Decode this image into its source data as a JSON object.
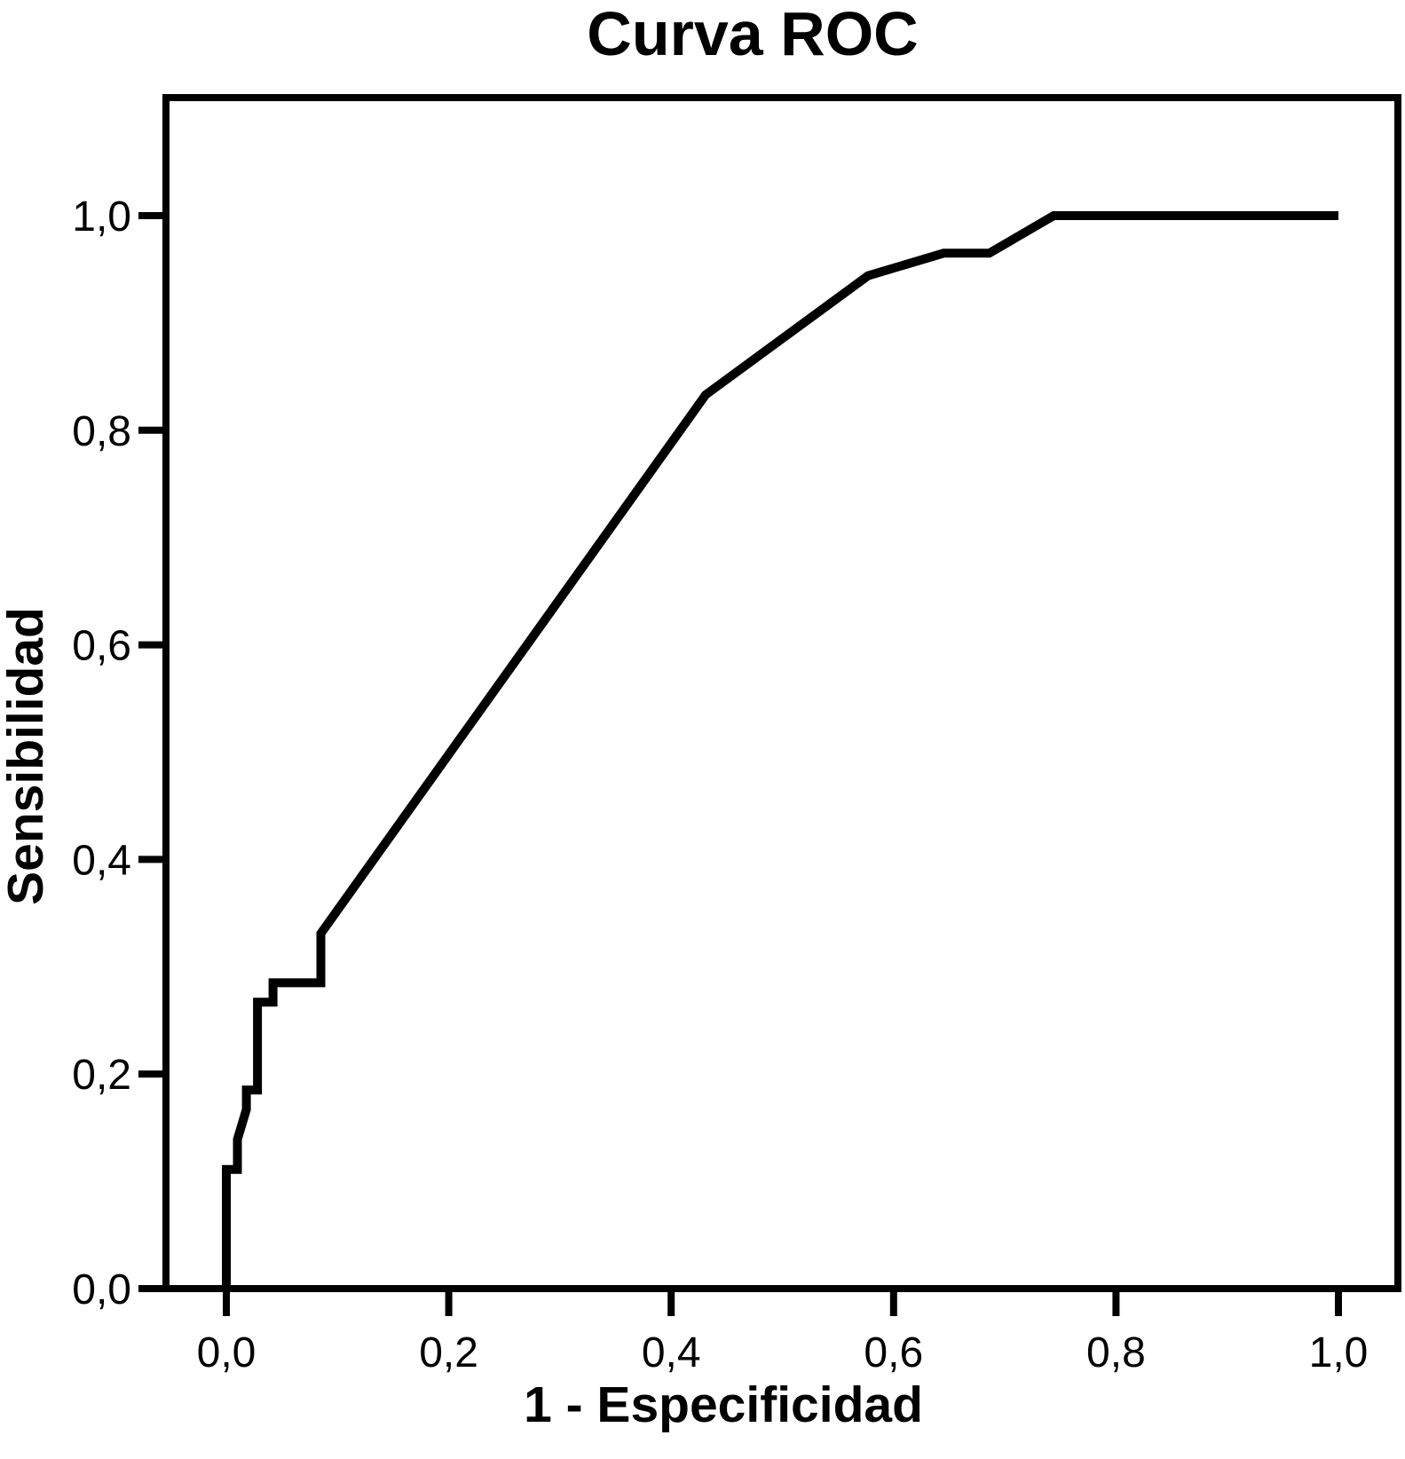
{
  "title": "Curva ROC",
  "x_axis": {
    "label": "1 - Especificidad",
    "tick_labels": [
      "0,0",
      "0,2",
      "0,4",
      "0,6",
      "0,8",
      "1,0"
    ]
  },
  "y_axis": {
    "label": "Sensibilidad",
    "tick_labels": [
      "0,0",
      "0,2",
      "0,4",
      "0,6",
      "0,8",
      "1,0"
    ]
  },
  "colors": {
    "curve": "#000000",
    "frame": "#000000",
    "text": "#000000",
    "background": "#ffffff"
  },
  "chart_data": {
    "type": "line",
    "title": "Curva ROC",
    "xlabel": "1 - Especificidad",
    "ylabel": "Sensibilidad",
    "xlim": [
      0,
      1
    ],
    "ylim": [
      0,
      1
    ],
    "x_ticks": [
      0,
      0.2,
      0.4,
      0.6,
      0.8,
      1.0
    ],
    "y_ticks": [
      0,
      0.2,
      0.4,
      0.6,
      0.8,
      1.0
    ],
    "decimal_separator": ",",
    "grid": false,
    "legend": "none",
    "curve_style": "stepped-polyline",
    "series": [
      {
        "name": "Curva ROC",
        "color": "#000000",
        "points": [
          [
            0.0,
            0.0
          ],
          [
            0.0,
            0.111
          ],
          [
            0.01,
            0.111
          ],
          [
            0.01,
            0.139
          ],
          [
            0.018,
            0.167
          ],
          [
            0.018,
            0.185
          ],
          [
            0.028,
            0.185
          ],
          [
            0.028,
            0.267
          ],
          [
            0.042,
            0.267
          ],
          [
            0.042,
            0.285
          ],
          [
            0.085,
            0.285
          ],
          [
            0.085,
            0.331
          ],
          [
            0.431,
            0.833
          ],
          [
            0.577,
            0.944
          ],
          [
            0.645,
            0.965
          ],
          [
            0.686,
            0.965
          ],
          [
            0.744,
            1.0
          ],
          [
            1.0,
            1.0
          ]
        ]
      }
    ]
  }
}
